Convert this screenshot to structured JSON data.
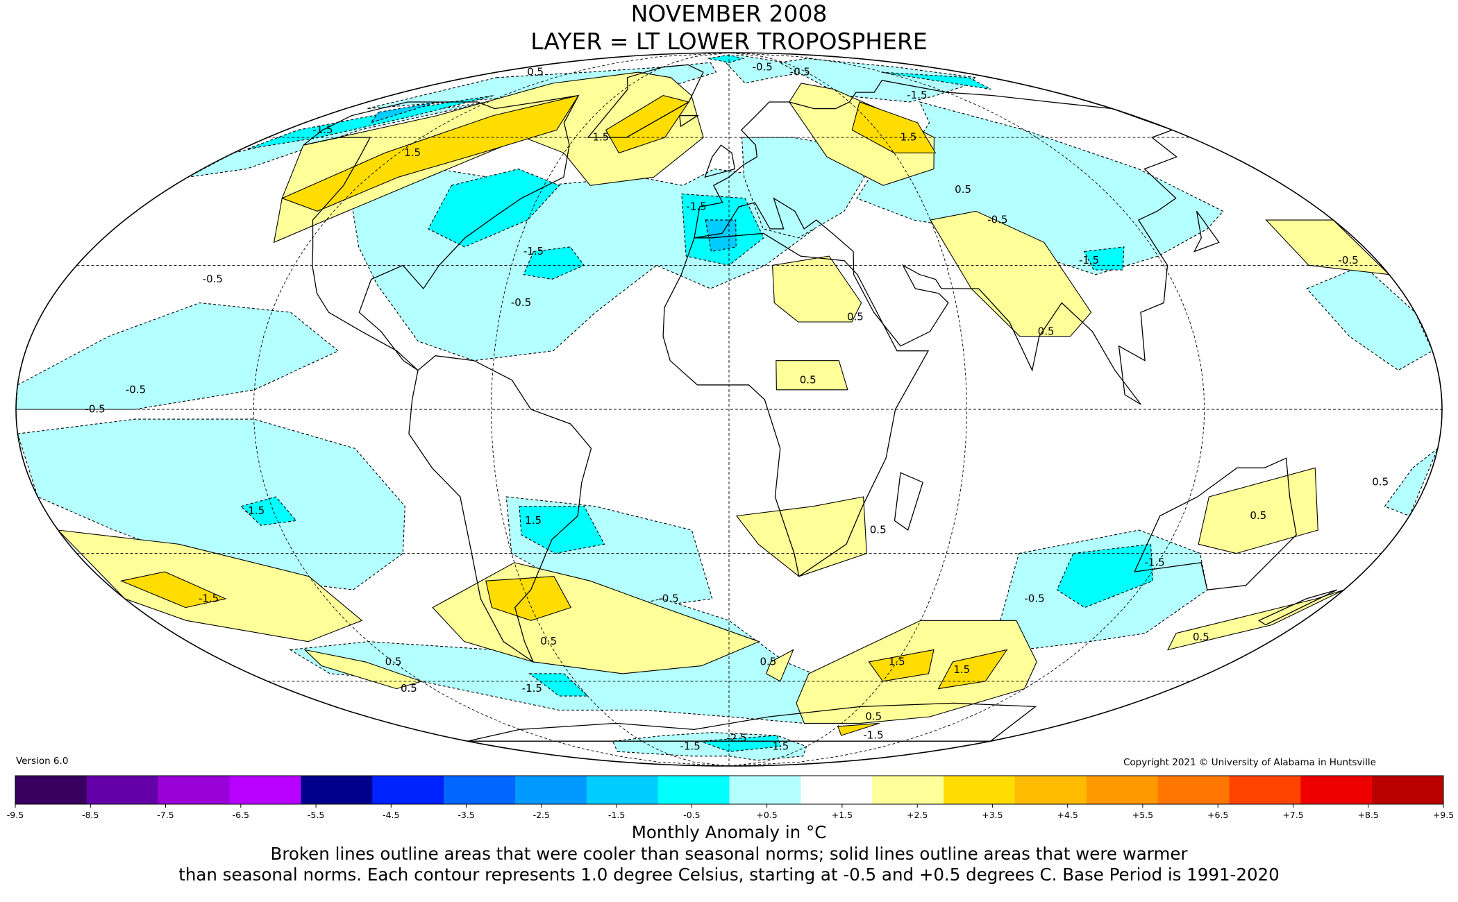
{
  "header": {
    "title_line1": "NOVEMBER 2008",
    "title_line2": "LAYER = LT LOWER TROPOSPHERE"
  },
  "version_label": "Version 6.0",
  "copyright": "Copyright 2021 © University of Alabama in Huntsville",
  "colorbar": {
    "ticks": [
      "-9.5",
      "-8.5",
      "-7.5",
      "-6.5",
      "-5.5",
      "-4.5",
      "-3.5",
      "-2.5",
      "-1.5",
      "-0.5",
      "+0.5",
      "+1.5",
      "+2.5",
      "+3.5",
      "+4.5",
      "+5.5",
      "+6.5",
      "+7.5",
      "+8.5",
      "+9.5"
    ],
    "colors": [
      "#3a0060",
      "#6400a8",
      "#9a00d8",
      "#b800ff",
      "#00008c",
      "#0022ff",
      "#0066ff",
      "#0099ff",
      "#00ccff",
      "#00ffff",
      "#b4ffff",
      "#ffffff",
      "#ffff99",
      "#ffdd00",
      "#ffbb00",
      "#ff9900",
      "#ff7700",
      "#ff4400",
      "#ee0000",
      "#bb0000"
    ],
    "units_label": "Monthly Anomaly in °C"
  },
  "caption": {
    "line1": "Broken lines outline areas that were cooler than seasonal norms; solid lines outline areas that were warmer",
    "line2": "than seasonal norms. Each contour represents 1.0 degree Celsius, starting at -0.5 and +0.5 degrees C. Base Period is 1991-2020"
  },
  "contour_labels": [
    {
      "text": "0.5",
      "lon": -150,
      "lat": 80
    },
    {
      "text": "-0.5",
      "lon": 30,
      "lat": 82
    },
    {
      "text": "-0.5",
      "lon": 55,
      "lat": 80
    },
    {
      "text": "-1.5",
      "lon": 100,
      "lat": 72
    },
    {
      "text": "-1.5",
      "lon": -165,
      "lat": 62
    },
    {
      "text": "1.5",
      "lon": -115,
      "lat": 56
    },
    {
      "text": "1.5",
      "lon": -50,
      "lat": 60
    },
    {
      "text": "1.5",
      "lon": 70,
      "lat": 60
    },
    {
      "text": "0.5",
      "lon": 75,
      "lat": 47
    },
    {
      "text": "-1.5",
      "lon": -10,
      "lat": 43
    },
    {
      "text": "-0.5",
      "lon": 80,
      "lat": 40
    },
    {
      "text": "-1.5",
      "lon": -55,
      "lat": 33
    },
    {
      "text": "-1.5",
      "lon": 100,
      "lat": 31
    },
    {
      "text": "-0.5",
      "lon": 172,
      "lat": 31
    },
    {
      "text": "-0.5",
      "lon": -140,
      "lat": 27
    },
    {
      "text": "-0.5",
      "lon": -55,
      "lat": 22
    },
    {
      "text": "0.5",
      "lon": 33,
      "lat": 19
    },
    {
      "text": "0.5",
      "lon": 82,
      "lat": 16
    },
    {
      "text": "0.5",
      "lon": 20,
      "lat": 6
    },
    {
      "text": "-0.5",
      "lon": -150,
      "lat": 4
    },
    {
      "text": "-0.5",
      "lon": -160,
      "lat": 0
    },
    {
      "text": "-1.5",
      "lon": -125,
      "lat": -21
    },
    {
      "text": "1.5",
      "lon": -52,
      "lat": -23
    },
    {
      "text": "0.5",
      "lon": 40,
      "lat": -25
    },
    {
      "text": "0.5",
      "lon": 140,
      "lat": -22
    },
    {
      "text": "0.5",
      "lon": 168,
      "lat": -15
    },
    {
      "text": "-1.5",
      "lon": 119,
      "lat": -32
    },
    {
      "text": "-0.5",
      "lon": 91,
      "lat": -40
    },
    {
      "text": "-0.5",
      "lon": -18,
      "lat": -40
    },
    {
      "text": "-1.5",
      "lon": -155,
      "lat": -40
    },
    {
      "text": "0.5",
      "lon": 155,
      "lat": -49
    },
    {
      "text": "0.5",
      "lon": -60,
      "lat": -50
    },
    {
      "text": "0.5",
      "lon": -120,
      "lat": -55
    },
    {
      "text": "0.5",
      "lon": -130,
      "lat": -62
    },
    {
      "text": "-1.5",
      "lon": -80,
      "lat": -62
    },
    {
      "text": "1.5",
      "lon": 60,
      "lat": -55
    },
    {
      "text": "1.5",
      "lon": 86,
      "lat": -57
    },
    {
      "text": "0.5",
      "lon": 14,
      "lat": -55
    },
    {
      "text": "0.5",
      "lon": 72,
      "lat": -70
    },
    {
      "text": "-1.5",
      "lon": -30,
      "lat": -80
    },
    {
      "text": "-2.5",
      "lon": 5,
      "lat": -77
    },
    {
      "text": "1.5",
      "lon": 40,
      "lat": -80
    },
    {
      "text": "-1.5",
      "lon": 90,
      "lat": -76
    }
  ]
}
